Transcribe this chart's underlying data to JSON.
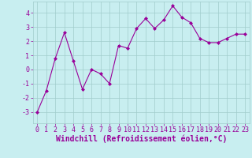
{
  "x": [
    0,
    1,
    2,
    3,
    4,
    5,
    6,
    7,
    8,
    9,
    10,
    11,
    12,
    13,
    14,
    15,
    16,
    17,
    18,
    19,
    20,
    21,
    22,
    23
  ],
  "y": [
    -3.0,
    -1.5,
    0.8,
    2.6,
    0.6,
    -1.4,
    0.0,
    -0.3,
    -1.0,
    1.7,
    1.5,
    2.9,
    3.6,
    2.9,
    3.5,
    4.5,
    3.7,
    3.3,
    2.2,
    1.9,
    1.9,
    2.2,
    2.5,
    2.5
  ],
  "line_color": "#990099",
  "marker": "D",
  "marker_size": 2,
  "bg_color": "#c8eef0",
  "grid_color": "#a0cccc",
  "xlabel": "Windchill (Refroidissement éolien,°C)",
  "xlabel_color": "#990099",
  "tick_color": "#990099",
  "ylim": [
    -3.8,
    4.8
  ],
  "yticks": [
    -3,
    -2,
    -1,
    0,
    1,
    2,
    3,
    4
  ],
  "xlim": [
    -0.5,
    23.5
  ],
  "xticks": [
    0,
    1,
    2,
    3,
    4,
    5,
    6,
    7,
    8,
    9,
    10,
    11,
    12,
    13,
    14,
    15,
    16,
    17,
    18,
    19,
    20,
    21,
    22,
    23
  ],
  "tick_fontsize": 6,
  "xlabel_fontsize": 7
}
